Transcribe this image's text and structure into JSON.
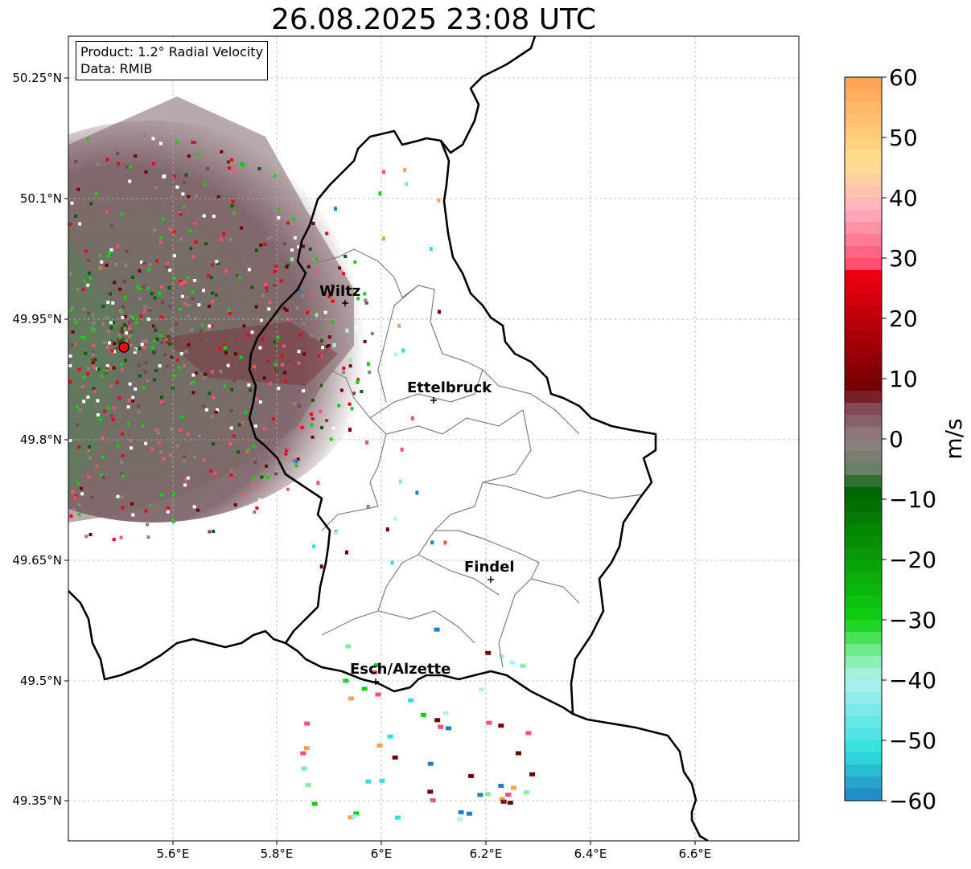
{
  "title": "26.08.2025 23:08 UTC",
  "info_box": {
    "product": "Product: 1.2° Radial Velocity",
    "source": "Data: RMIB"
  },
  "lat_ticks": [
    "50.25°N",
    "50.1°N",
    "49.95°N",
    "49.8°N",
    "49.65°N",
    "49.5°N",
    "49.35°N"
  ],
  "lon_ticks": [
    "5.6°E",
    "5.8°E",
    "6°E",
    "6.2°E",
    "6.4°E",
    "6.6°E"
  ],
  "cities": [
    {
      "name": "Wiltz"
    },
    {
      "name": "Ettelbruck"
    },
    {
      "name": "Findel"
    },
    {
      "name": "Esch/Alzette"
    }
  ],
  "colorbar": {
    "unit": "m/s",
    "min": -60,
    "max": 60,
    "ticks": [
      "60",
      "50",
      "40",
      "30",
      "20",
      "10",
      "0",
      "−10",
      "−20",
      "−30",
      "−40",
      "−50",
      "−60"
    ],
    "colors": {
      "negative_far": "#2080c0",
      "cyan": "#30e0e0",
      "light_cyan": "#b0f0f0",
      "green_light": "#80f0a0",
      "green": "#10d010",
      "green_dark": "#006000",
      "gray_green": "#608060",
      "gray": "#908080",
      "brown": "#804050",
      "dark_red": "#700000",
      "red": "#f00010",
      "pink": "#ff5070",
      "pink_light": "#ffb0c0",
      "yellow": "#ffe090",
      "orange": "#ffa050"
    }
  }
}
